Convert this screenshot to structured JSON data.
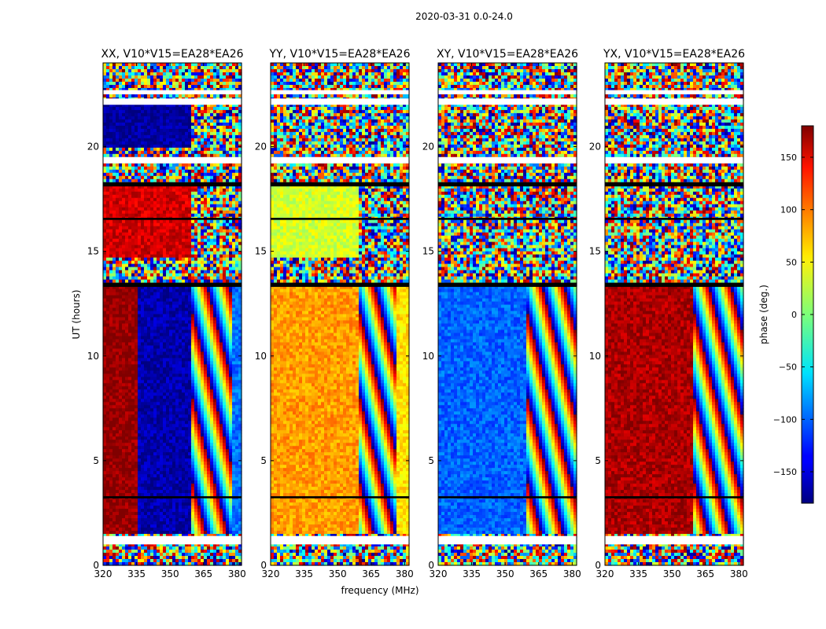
{
  "figure": {
    "suptitle": "2020-03-31 0.0-24.0",
    "xlabel": "frequency (MHz)",
    "ylabel": "UT (hours)"
  },
  "chart_data": [
    {
      "type": "heatmap",
      "title": "XX, V10*V15=EA28*EA26",
      "x_ticks": [
        "320",
        "335",
        "350",
        "365",
        "380"
      ],
      "y_ticks": [
        "0",
        "5",
        "10",
        "15",
        "20"
      ],
      "x_range": [
        320,
        382
      ],
      "y_range": [
        0,
        24
      ],
      "regions": [
        {
          "f0": 320,
          "f1": 335,
          "t0": 1.5,
          "t1": 13.3,
          "phase": 175
        },
        {
          "f0": 335,
          "f1": 359,
          "t0": 1.5,
          "t1": 13.3,
          "phase": -165
        },
        {
          "f0": 359,
          "f1": 378,
          "t0": 1.5,
          "t1": 13.3,
          "phase": "rainbow"
        },
        {
          "f0": 378,
          "f1": 382,
          "t0": 1.5,
          "t1": 13.3,
          "phase": -95
        },
        {
          "f0": 320,
          "f1": 359,
          "t0": 14.7,
          "t1": 18.2,
          "phase": 150
        },
        {
          "f0": 320,
          "f1": 359,
          "t0": 20.0,
          "t1": 22.0,
          "phase": -170
        }
      ],
      "noise_phase": 0
    },
    {
      "type": "heatmap",
      "title": "YY, V10*V15=EA28*EA26",
      "x_ticks": [
        "320",
        "335",
        "350",
        "365",
        "380"
      ],
      "y_ticks": [
        "0",
        "5",
        "10",
        "15",
        "20"
      ],
      "x_range": [
        320,
        382
      ],
      "y_range": [
        0,
        24
      ],
      "regions": [
        {
          "f0": 320,
          "f1": 359,
          "t0": 1.5,
          "t1": 13.3,
          "phase": 80
        },
        {
          "f0": 359,
          "f1": 377,
          "t0": 1.5,
          "t1": 13.3,
          "phase": "rainbow"
        },
        {
          "f0": 377,
          "f1": 382,
          "t0": 1.5,
          "t1": 13.3,
          "phase": 55
        },
        {
          "f0": 320,
          "f1": 359,
          "t0": 14.7,
          "t1": 18.2,
          "phase": 30
        }
      ],
      "noise_phase": 0
    },
    {
      "type": "heatmap",
      "title": "XY, V10*V15=EA28*EA26",
      "x_ticks": [
        "320",
        "335",
        "350",
        "365",
        "380"
      ],
      "y_ticks": [
        "0",
        "5",
        "10",
        "15",
        "20"
      ],
      "x_range": [
        320,
        382
      ],
      "y_range": [
        0,
        24
      ],
      "regions": [
        {
          "f0": 320,
          "f1": 360,
          "t0": 1.5,
          "t1": 13.3,
          "phase": -100
        },
        {
          "f0": 360,
          "f1": 382,
          "t0": 1.5,
          "t1": 13.3,
          "phase": "rainbow"
        }
      ],
      "noise_phase": 0
    },
    {
      "type": "heatmap",
      "title": "YX, V10*V15=EA28*EA26",
      "x_ticks": [
        "320",
        "335",
        "350",
        "365",
        "380"
      ],
      "y_ticks": [
        "0",
        "5",
        "10",
        "15",
        "20"
      ],
      "x_range": [
        320,
        382
      ],
      "y_range": [
        0,
        24
      ],
      "regions": [
        {
          "f0": 320,
          "f1": 360,
          "t0": 1.5,
          "t1": 13.3,
          "phase": 165
        },
        {
          "f0": 360,
          "f1": 382,
          "t0": 1.5,
          "t1": 13.3,
          "phase": "rainbow"
        }
      ],
      "noise_phase": 0
    }
  ],
  "colorbar": {
    "label": "phase (deg.)",
    "range": [
      -180,
      180
    ],
    "ticks": [
      {
        "value": 150,
        "label": "150"
      },
      {
        "value": 100,
        "label": "100"
      },
      {
        "value": 50,
        "label": "50"
      },
      {
        "value": 0,
        "label": "0"
      },
      {
        "value": -50,
        "label": "−50"
      },
      {
        "value": -100,
        "label": "−100"
      },
      {
        "value": -150,
        "label": "−150"
      }
    ]
  },
  "blank_bands_hours": [
    [
      1.0,
      1.4
    ],
    [
      19.2,
      19.5
    ],
    [
      22.0,
      22.3
    ],
    [
      22.5,
      22.7
    ]
  ],
  "dark_bands_hours": [
    [
      13.3,
      13.5
    ],
    [
      18.1,
      18.3
    ],
    [
      16.5,
      16.6
    ],
    [
      3.2,
      3.3
    ]
  ]
}
